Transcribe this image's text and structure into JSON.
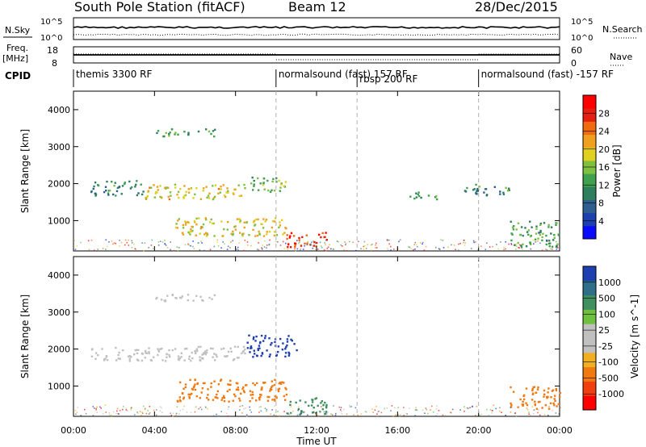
{
  "header": {
    "station": "South Pole Station (fitACF)",
    "beam": "Beam 12",
    "date": "28/Dec/2015"
  },
  "strip_labels": {
    "nsky": "N.Sky",
    "nsearch": "N.Search",
    "freq_line1": "Freq.",
    "freq_line2": "[MHz]",
    "nave": "Nave",
    "cpid": "CPID",
    "left_top_1": "10^5",
    "left_bot_1": "10^0",
    "right_top_1": "10^5",
    "right_bot_1": "10^0",
    "left_top_2": "18",
    "left_bot_2": "8",
    "right_top_2": "60",
    "right_bot_2": "0"
  },
  "cpid_segments": [
    {
      "start": "00:00",
      "label": "themis 3300 RF"
    },
    {
      "start": "10:00",
      "label": "normalsound (fast) 157 RF"
    },
    {
      "start": "14:00",
      "label": "rbsp 200 RF"
    },
    {
      "start": "20:00",
      "label": "normalsound (fast) -157 RF"
    }
  ],
  "colors": {
    "power_scale": [
      "#0a0aff",
      "#1e3fb0",
      "#2f5f8f",
      "#2f7f5f",
      "#3fa050",
      "#80c040",
      "#e0d020",
      "#f0a020",
      "#f06a10",
      "#e52010",
      "#ff0000"
    ],
    "velocity_scale": [
      "#1e3fb0",
      "#2f6f8a",
      "#3f8f5f",
      "#70c040",
      "#c0c0c0",
      "#c0c0c0",
      "#f0b020",
      "#f07a10",
      "#f04010",
      "#ff0000"
    ]
  },
  "chart_data": [
    {
      "type": "heatmap",
      "panel": "power",
      "ylabel": "Slant Range [km]",
      "xlabel": "Time UT",
      "x_ticks": [
        "00:00",
        "04:00",
        "08:00",
        "12:00",
        "16:00",
        "20:00",
        "00:00"
      ],
      "y_ticks": [
        1000,
        2000,
        3000,
        4000
      ],
      "xlim_hours": [
        0,
        24
      ],
      "ylim_km": [
        180,
        4500
      ],
      "colorbar_label": "Power [dB]",
      "colorbar_ticks": [
        "4",
        "8",
        "12",
        "16",
        "20",
        "24",
        "28"
      ],
      "clim": [
        0,
        30
      ],
      "regions": [
        {
          "t": [
            0.8,
            3.5
          ],
          "r": [
            1700,
            2100
          ],
          "value": 10
        },
        {
          "t": [
            3.5,
            8.5
          ],
          "r": [
            1600,
            2000
          ],
          "value": 18
        },
        {
          "t": [
            8.5,
            10.5
          ],
          "r": [
            1800,
            2200
          ],
          "value": 14
        },
        {
          "t": [
            4.0,
            7.0
          ],
          "r": [
            3300,
            3500
          ],
          "value": 12
        },
        {
          "t": [
            5.0,
            10.5
          ],
          "r": [
            600,
            1100
          ],
          "value": 18
        },
        {
          "t": [
            10.5,
            12.5
          ],
          "r": [
            300,
            700
          ],
          "value": 26
        },
        {
          "t": [
            16.5,
            18.0
          ],
          "r": [
            1600,
            1800
          ],
          "value": 12
        },
        {
          "t": [
            19.0,
            21.5
          ],
          "r": [
            1700,
            2000
          ],
          "value": 10
        },
        {
          "t": [
            21.5,
            24.0
          ],
          "r": [
            300,
            1000
          ],
          "value": 12
        }
      ]
    },
    {
      "type": "heatmap",
      "panel": "velocity",
      "ylabel": "Slant Range [km]",
      "xlabel": "Time UT",
      "x_ticks": [
        "00:00",
        "04:00",
        "08:00",
        "12:00",
        "16:00",
        "20:00",
        "00:00"
      ],
      "y_ticks": [
        1000,
        2000,
        3000,
        4000
      ],
      "xlim_hours": [
        0,
        24
      ],
      "ylim_km": [
        180,
        4500
      ],
      "colorbar_label": "Velocity [m s^-1]",
      "colorbar_ticks": [
        "1000",
        "500",
        "100",
        "25",
        "-25",
        "-100",
        "-500",
        "-1000"
      ],
      "regions": [
        {
          "t": [
            0.8,
            8.5
          ],
          "r": [
            1700,
            2100
          ],
          "value": 0
        },
        {
          "t": [
            4.0,
            7.0
          ],
          "r": [
            3300,
            3500
          ],
          "value": 0
        },
        {
          "t": [
            8.5,
            11.0
          ],
          "r": [
            1800,
            2400
          ],
          "value": 800
        },
        {
          "t": [
            5.0,
            10.5
          ],
          "r": [
            600,
            1200
          ],
          "value": -300
        },
        {
          "t": [
            10.5,
            12.5
          ],
          "r": [
            250,
            700
          ],
          "value": 150
        },
        {
          "t": [
            21.5,
            24.0
          ],
          "r": [
            400,
            1000
          ],
          "value": -400
        }
      ]
    }
  ]
}
